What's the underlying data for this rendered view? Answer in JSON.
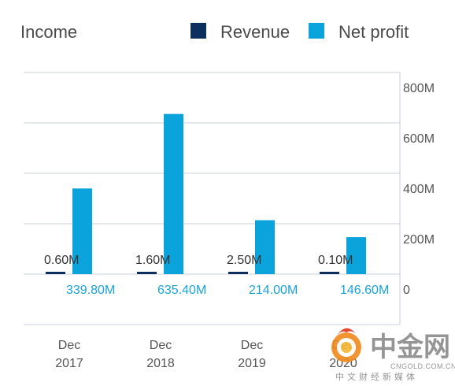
{
  "chart_data": {
    "type": "bar",
    "title": "Income",
    "legend_position": "top-right",
    "grid": true,
    "categories": [
      [
        "Dec",
        "2017"
      ],
      [
        "Dec",
        "2018"
      ],
      [
        "Dec",
        "2019"
      ],
      [
        "Dec",
        "2020"
      ]
    ],
    "ylim": [
      -200,
      800
    ],
    "yticks": [
      {
        "value": 800,
        "label": "800M"
      },
      {
        "value": 600,
        "label": "600M"
      },
      {
        "value": 400,
        "label": "400M"
      },
      {
        "value": 200,
        "label": "200M"
      },
      {
        "value": 0,
        "label": "0"
      }
    ],
    "series": [
      {
        "name": "Revenue",
        "color": "#0d2f5e",
        "values": [
          0.6,
          1.6,
          2.5,
          0.1
        ],
        "labels": [
          "0.60M",
          "1.60M",
          "2.50M",
          "0.10M"
        ]
      },
      {
        "name": "Net profit",
        "color": "#0aa3dc",
        "values": [
          339.8,
          635.4,
          214.0,
          146.6
        ],
        "labels": [
          "339.80M",
          "635.40M",
          "214.00M",
          "146.60M"
        ]
      }
    ]
  },
  "watermark": {
    "text_cn": "中金网",
    "url": "CNGOLD.COM.CN",
    "sub": "中文财经新媒体",
    "icon": "flame-coin-icon"
  }
}
